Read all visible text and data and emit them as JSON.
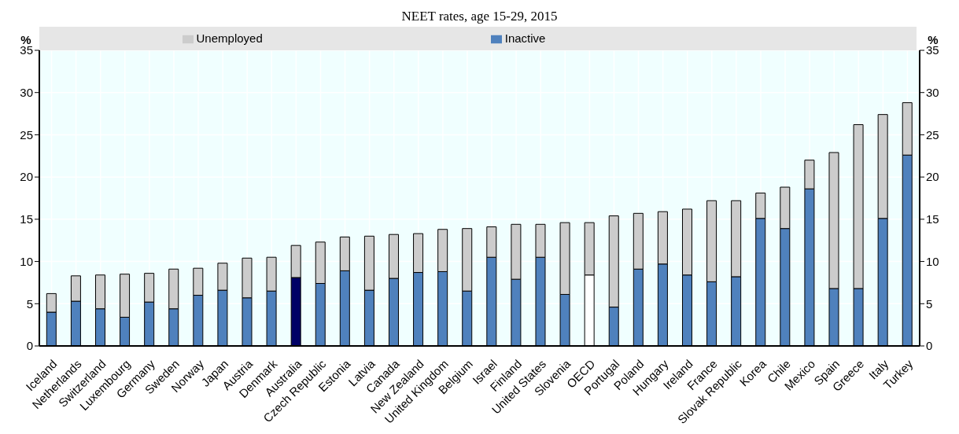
{
  "chart_data": {
    "type": "bar",
    "title": "NEET rates, age 15-29, 2015",
    "ylabel": "%",
    "y2label": "%",
    "stacked": true,
    "grid": true,
    "legend": "top",
    "categories": [
      "Iceland",
      "Netherlands",
      "Switzerland",
      "Luxembourg",
      "Germany",
      "Sweden",
      "Norway",
      "Japan",
      "Austria",
      "Denmark",
      "Australia",
      "Czech Republic",
      "Estonia",
      "Latvia",
      "Canada",
      "New Zealand",
      "United Kingdom",
      "Belgium",
      "Israel",
      "Finland",
      "United States",
      "Slovenia",
      "OECD",
      "Portugal",
      "Poland",
      "Hungary",
      "Ireland",
      "France",
      "Slovak Republic",
      "Korea",
      "Chile",
      "Mexico",
      "Spain",
      "Greece",
      "Italy",
      "Turkey"
    ],
    "series": [
      {
        "name": "Inactive",
        "color": "#4f81bd",
        "colors": [
          "#4f81bd",
          "#4f81bd",
          "#4f81bd",
          "#4f81bd",
          "#4f81bd",
          "#4f81bd",
          "#4f81bd",
          "#4f81bd",
          "#4f81bd",
          "#4f81bd",
          "#000066",
          "#4f81bd",
          "#4f81bd",
          "#4f81bd",
          "#4f81bd",
          "#4f81bd",
          "#4f81bd",
          "#4f81bd",
          "#4f81bd",
          "#4f81bd",
          "#4f81bd",
          "#4f81bd",
          "#ffffff",
          "#4f81bd",
          "#4f81bd",
          "#4f81bd",
          "#4f81bd",
          "#4f81bd",
          "#4f81bd",
          "#4f81bd",
          "#4f81bd",
          "#4f81bd",
          "#4f81bd",
          "#4f81bd",
          "#4f81bd",
          "#4f81bd"
        ],
        "values": [
          4.0,
          5.3,
          4.4,
          3.4,
          5.2,
          4.4,
          6.0,
          6.6,
          5.7,
          6.5,
          8.1,
          7.4,
          8.9,
          6.6,
          8.0,
          8.7,
          8.8,
          6.5,
          10.5,
          7.9,
          10.5,
          6.1,
          8.4,
          4.6,
          9.1,
          9.7,
          8.4,
          7.6,
          8.2,
          15.1,
          13.9,
          18.6,
          6.8,
          6.8,
          15.1,
          22.6
        ]
      },
      {
        "name": "Unemployed",
        "color": "#cccccc",
        "values": [
          2.2,
          3.0,
          4.0,
          5.1,
          3.4,
          4.7,
          3.2,
          3.2,
          4.7,
          4.0,
          3.8,
          4.9,
          4.0,
          6.4,
          5.2,
          4.6,
          5.0,
          7.4,
          3.6,
          6.5,
          3.9,
          8.5,
          6.2,
          10.8,
          6.6,
          6.2,
          7.8,
          9.6,
          9.0,
          3.0,
          4.9,
          3.4,
          16.1,
          19.4,
          12.3,
          6.2
        ]
      }
    ],
    "ylim": [
      0,
      35
    ],
    "yticks": [
      0,
      5,
      10,
      15,
      20,
      25,
      30,
      35
    ],
    "y2lim": [
      0,
      35
    ],
    "y2ticks": [
      0,
      5,
      10,
      15,
      20,
      25,
      30,
      35
    ]
  }
}
